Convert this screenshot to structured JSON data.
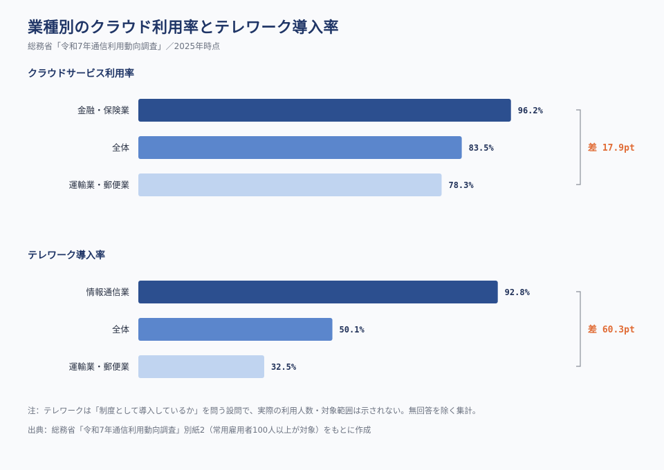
{
  "header": {
    "title": "業種別のクラウド利用率とテレワーク導入率",
    "subtitle": "総務省「令和7年通信利用動向調査」／2025年時点"
  },
  "colors": {
    "bar_dark": "#2c4f8f",
    "bar_mid": "#5b86cc",
    "bar_light": "#c0d4f0",
    "value_text": "#1e2f57",
    "diff_text": "#e06a33",
    "bracket": "#8a8f99",
    "section_title": "#1f3566"
  },
  "chart_data": [
    {
      "type": "bar",
      "orientation": "horizontal",
      "title": "クラウドサービス利用率",
      "categories": [
        "金融・保険業",
        "全体",
        "運輸業・郵便業"
      ],
      "values": [
        96.2,
        83.5,
        78.3
      ],
      "value_labels": [
        "96.2%",
        "83.5%",
        "78.3%"
      ],
      "xlim": [
        0,
        100
      ],
      "grid": false,
      "annotation": "差 17.9pt"
    },
    {
      "type": "bar",
      "orientation": "horizontal",
      "title": "テレワーク導入率",
      "categories": [
        "情報通信業",
        "全体",
        "運輸業・郵便業"
      ],
      "values": [
        92.8,
        50.1,
        32.5
      ],
      "value_labels": [
        "92.8%",
        "50.1%",
        "32.5%"
      ],
      "xlim": [
        0,
        100
      ],
      "grid": false,
      "annotation": "差 60.3pt"
    }
  ],
  "footer": {
    "note": "注：テレワークは「制度として導入しているか」を問う設問で、実際の利用人数・対象範囲は示されない。無回答を除く集計。",
    "source": "出典：総務省「令和7年通信利用動向調査」別紙2（常用雇用者100人以上が対象）をもとに作成"
  }
}
